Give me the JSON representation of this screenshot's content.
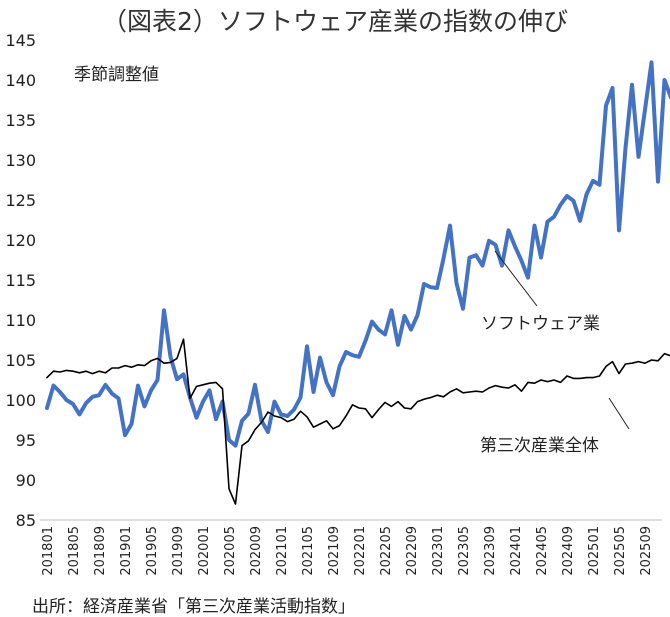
{
  "chart_data": {
    "type": "line",
    "title": "（図表2）ソフトウェア産業の指数の伸び",
    "subtitle": "季節調整値",
    "source": "出所：経済産業省「第三次産業活動指数」",
    "ylim": [
      85,
      145
    ],
    "yticks": [
      85,
      90,
      95,
      100,
      105,
      110,
      115,
      120,
      125,
      130,
      135,
      140,
      145
    ],
    "start": "2018-01",
    "xtick_labels": [
      "201801",
      "201805",
      "201809",
      "201901",
      "201905",
      "201909",
      "202001",
      "202005",
      "202009",
      "202101",
      "202105",
      "202109",
      "202201",
      "202205",
      "202209",
      "202301",
      "202305",
      "202309",
      "202401",
      "202405",
      "202409",
      "202501",
      "202505",
      "202509"
    ],
    "grid": false,
    "series": [
      {
        "name": "ソフトウェア業",
        "color": "#4472c4",
        "values": [
          99.0,
          101.8,
          101.0,
          100.0,
          99.5,
          98.2,
          99.6,
          100.4,
          100.6,
          101.9,
          100.8,
          100.2,
          95.6,
          97.0,
          101.8,
          99.2,
          101.2,
          102.5,
          111.2,
          105.4,
          102.6,
          103.2,
          100.3,
          97.8,
          99.8,
          101.2,
          97.6,
          99.8,
          95.0,
          94.3,
          97.4,
          98.3,
          101.9,
          97.4,
          96.0,
          99.8,
          98.2,
          98.0,
          98.8,
          100.3,
          106.7,
          101.0,
          105.3,
          102.2,
          100.6,
          104.2,
          106.0,
          105.6,
          105.4,
          107.4,
          109.8,
          108.8,
          108.2,
          111.2,
          106.9,
          110.5,
          108.8,
          110.6,
          114.5,
          114.1,
          114.0,
          117.7,
          121.8,
          114.6,
          111.4,
          117.8,
          118.1,
          116.8,
          119.9,
          119.4,
          116.8,
          121.2,
          119.2,
          117.4,
          115.3,
          121.8,
          117.8,
          122.3,
          122.9,
          124.4,
          125.5,
          124.9,
          122.4,
          125.7,
          127.4,
          126.9,
          136.8,
          139.0,
          121.2,
          131.5,
          139.4,
          130.4,
          136.3,
          142.2,
          127.3,
          140.0,
          137.8
        ]
      },
      {
        "name": "第三次産業全体",
        "color": "#000000",
        "values": [
          102.8,
          103.6,
          103.5,
          103.7,
          103.6,
          103.4,
          103.6,
          103.3,
          103.6,
          103.4,
          104.0,
          104.0,
          104.3,
          104.1,
          104.4,
          104.3,
          104.9,
          105.2,
          104.6,
          104.7,
          105.2,
          107.6,
          100.2,
          101.7,
          101.9,
          102.1,
          102.2,
          101.4,
          88.9,
          87.0,
          94.3,
          94.9,
          96.3,
          97.2,
          98.5,
          98.0,
          97.8,
          97.3,
          97.6,
          98.6,
          97.9,
          96.6,
          97.0,
          97.4,
          96.4,
          96.8,
          98.0,
          99.4,
          99.0,
          98.9,
          97.8,
          98.8,
          99.7,
          99.2,
          99.8,
          99.0,
          98.9,
          99.8,
          100.1,
          100.3,
          100.6,
          100.4,
          101.0,
          101.4,
          100.9,
          101.0,
          101.1,
          101.0,
          101.5,
          101.8,
          101.6,
          101.5,
          101.9,
          101.1,
          102.2,
          102.1,
          102.5,
          102.3,
          102.5,
          102.2,
          103.0,
          102.7,
          102.7,
          102.8,
          102.8,
          103.0,
          104.2,
          104.8,
          103.3,
          104.5,
          104.6,
          104.8,
          104.6,
          105.0,
          104.9,
          105.8,
          105.5
        ]
      }
    ]
  }
}
